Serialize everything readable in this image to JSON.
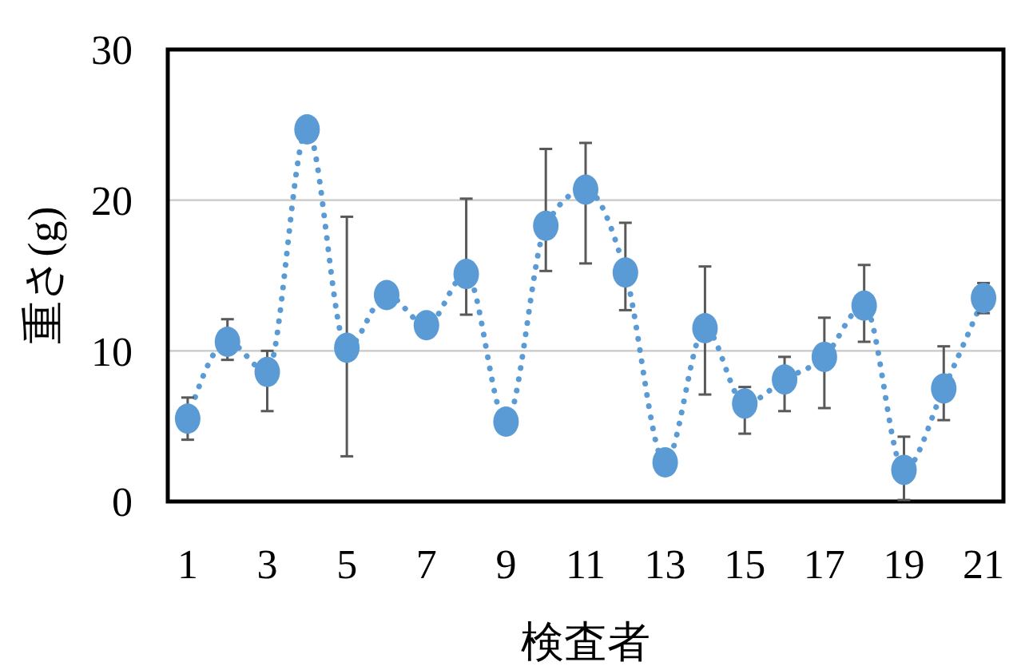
{
  "chart_data": {
    "type": "line",
    "xlabel": "検査者",
    "ylabel": "重さ(g)",
    "x": [
      1,
      2,
      3,
      4,
      5,
      6,
      7,
      8,
      9,
      10,
      11,
      12,
      13,
      14,
      15,
      16,
      17,
      18,
      19,
      20,
      21
    ],
    "series": [
      {
        "color": "#5b9bd5",
        "values": [
          5.5,
          10.6,
          8.6,
          24.7,
          10.2,
          13.7,
          11.7,
          15.1,
          5.3,
          18.3,
          20.7,
          15.2,
          2.6,
          11.5,
          6.5,
          8.1,
          9.6,
          13.0,
          2.1,
          7.5,
          13.5
        ],
        "errors": [
          [
            4.1,
            6.9
          ],
          [
            9.4,
            12.1
          ],
          [
            6.0,
            10.0
          ],
          null,
          [
            3.0,
            18.9
          ],
          null,
          null,
          [
            12.4,
            20.1
          ],
          null,
          [
            15.3,
            23.4
          ],
          [
            15.8,
            23.8
          ],
          [
            12.7,
            18.5
          ],
          null,
          [
            7.1,
            15.6
          ],
          [
            4.5,
            7.6
          ],
          [
            6.0,
            9.6
          ],
          [
            6.2,
            12.2
          ],
          [
            10.6,
            15.7
          ],
          [
            0.1,
            4.3
          ],
          [
            5.4,
            10.3
          ],
          [
            12.5,
            14.5
          ]
        ]
      }
    ],
    "xlim": [
      0.5,
      21.5
    ],
    "xticks": [
      1,
      3,
      5,
      7,
      9,
      11,
      13,
      15,
      17,
      19,
      21
    ],
    "ylim": [
      0,
      30
    ],
    "yticks": [
      0,
      10,
      20,
      30
    ],
    "grid": "y",
    "marker": "circle",
    "line_style": "dotted"
  }
}
